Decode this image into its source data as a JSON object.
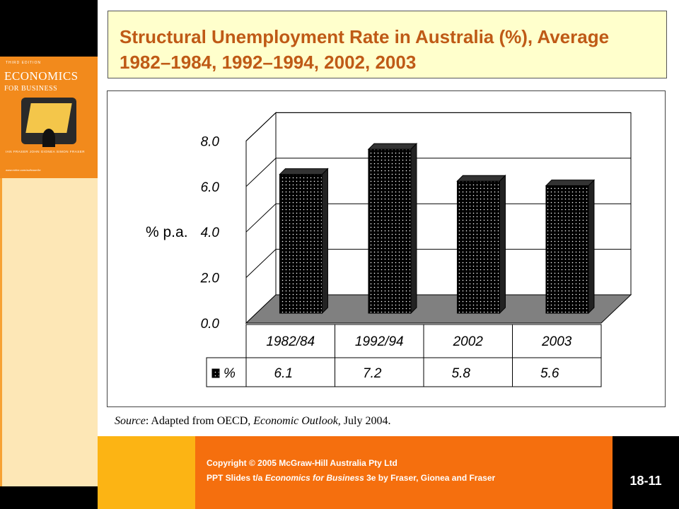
{
  "title": "Structural Unemployment Rate in Australia (%), Average 1982–1984, 1992–1994, 2002, 2003",
  "book": {
    "edition": "THIRD EDITION",
    "title_line1": "ECONOMICS",
    "title_line2": "FOR BUSINESS",
    "authors": "IAN FRASER  JOHN GIONEA  SIMON FRASER",
    "url": "www.mhhe.com/au/fraser3e"
  },
  "chart_data": {
    "type": "bar",
    "three_d": true,
    "title": "",
    "ylabel": "% p.a.",
    "xlabel": "",
    "ylim": [
      0,
      8
    ],
    "yticks": [
      "0.0",
      "2.0",
      "4.0",
      "6.0",
      "8.0"
    ],
    "categories": [
      "1982/84",
      "1992/94",
      "2002",
      "2003"
    ],
    "series": [
      {
        "name": "%",
        "values": [
          6.1,
          7.2,
          5.8,
          5.6
        ],
        "labels": [
          "6.1",
          "7.2",
          "5.8",
          "5.6"
        ]
      }
    ],
    "grid": true,
    "legend": "data-table",
    "colors": {
      "bar": "#000000",
      "floor": "#808080",
      "dots": "#ffffff"
    }
  },
  "source": {
    "prefix": "Source",
    "text1": ": Adapted from OECD, ",
    "publication": "Economic Outlook",
    "text2": ", July 2004."
  },
  "footer": {
    "copyright": "Copyright © 2005 McGraw-Hill Australia Pty Ltd",
    "ppt_prefix": "PPT Slides t/a ",
    "ppt_book": "Economics for Business",
    "ppt_suffix": " 3e by Fraser, Gionea and Fraser",
    "slide_number": "18-11"
  }
}
